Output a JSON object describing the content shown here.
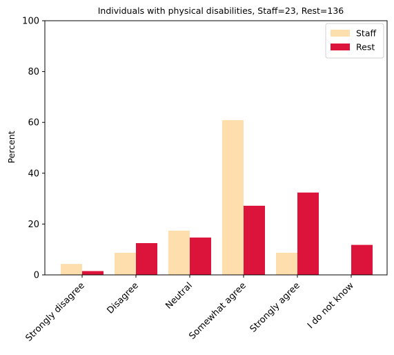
{
  "chart_data": {
    "type": "bar",
    "title": "Individuals with physical disabilities, Staff=23, Rest=136",
    "xlabel": "",
    "ylabel": "Percent",
    "ylim": [
      0,
      100
    ],
    "yticks": [
      "0",
      "20",
      "40",
      "60",
      "80",
      "100"
    ],
    "categories": [
      "Strongly disagree",
      "Disagree",
      "Neutral",
      "Somewhat agree",
      "Strongly agree",
      "I do not know"
    ],
    "series": [
      {
        "name": "Staff",
        "color": "#FFDEAD",
        "values": [
          4.3,
          8.7,
          17.4,
          60.9,
          8.7,
          0
        ]
      },
      {
        "name": "Rest",
        "color": "#DC143C",
        "values": [
          1.5,
          12.5,
          14.7,
          27.2,
          32.4,
          11.8
        ]
      }
    ],
    "legend_position": "top-right",
    "grid": false
  }
}
